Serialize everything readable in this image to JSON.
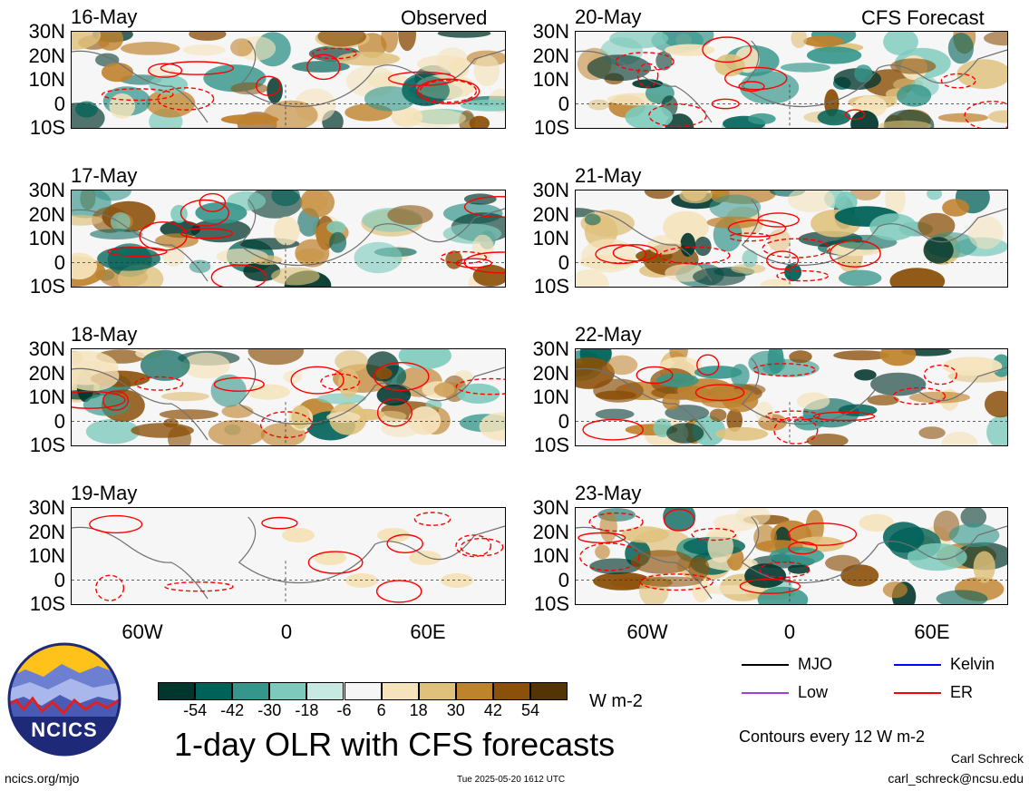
{
  "headers": {
    "observed": "Observed",
    "forecast": "CFS Forecast"
  },
  "panels": [
    {
      "date": "16-May",
      "column": "observed",
      "seed": 3
    },
    {
      "date": "17-May",
      "column": "observed",
      "seed": 7
    },
    {
      "date": "18-May",
      "column": "observed",
      "seed": 11
    },
    {
      "date": "19-May",
      "column": "observed",
      "seed": 0
    },
    {
      "date": "20-May",
      "column": "forecast",
      "seed": 13
    },
    {
      "date": "21-May",
      "column": "forecast",
      "seed": 17
    },
    {
      "date": "22-May",
      "column": "forecast",
      "seed": 19
    },
    {
      "date": "23-May",
      "column": "forecast",
      "seed": 23
    }
  ],
  "lat_labels": [
    "30N",
    "20N",
    "10N",
    "0",
    "10S"
  ],
  "lon_labels": [
    "60W",
    "0",
    "60E"
  ],
  "colorbar": {
    "colors": [
      "#01362c",
      "#006158",
      "#36968b",
      "#7dcabc",
      "#c6eae2",
      "#f6f6f6",
      "#f5e3bc",
      "#dfc17c",
      "#bf822d",
      "#8b500a",
      "#533404"
    ],
    "labels": [
      "-54",
      "-42",
      "-30",
      "-18",
      "-6",
      "6",
      "18",
      "30",
      "42",
      "54"
    ],
    "units": "W m-2"
  },
  "legend": [
    {
      "label": "MJO",
      "color": "#000000",
      "style": "solid"
    },
    {
      "label": "Kelvin",
      "color": "#0000ff",
      "style": "solid"
    },
    {
      "label": "Low",
      "color": "#a040e0",
      "style": "solid"
    },
    {
      "label": "ER",
      "color": "#ff0000",
      "style": "solid"
    }
  ],
  "contour_note": "Contours every 12 W m-2",
  "title": "1-day OLR with CFS forecasts",
  "logo_text": "NCICS",
  "footer": {
    "left": "ncics.org/mjo",
    "timestamp": "Tue 2025-05-20 1612 UTC",
    "author": "Carl Schreck",
    "email": "carl_schreck@ncsu.edu"
  }
}
